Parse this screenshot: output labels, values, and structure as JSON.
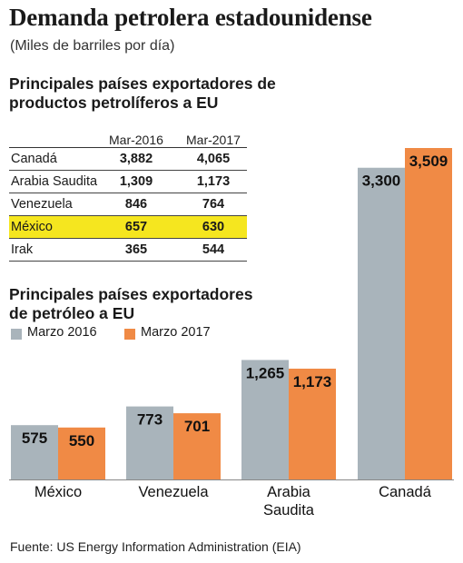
{
  "title": "Demanda petrolera estadounidense",
  "subtitle": "(Miles de barriles por día)",
  "table": {
    "title_line1": "Principales países exportadores de",
    "title_line2": "productos petrolíferos a EU",
    "headers": [
      "Mar-2016",
      "Mar-2017"
    ],
    "rows": [
      {
        "country": "Canadá",
        "v2016": "3,882",
        "v2017": "4,065",
        "highlight": false
      },
      {
        "country": "Arabia Saudita",
        "v2016": "1,309",
        "v2017": "1,173",
        "highlight": false
      },
      {
        "country": "Venezuela",
        "v2016": "846",
        "v2017": "764",
        "highlight": false
      },
      {
        "country": "México",
        "v2016": "657",
        "v2017": "630",
        "highlight": true
      },
      {
        "country": "Irak",
        "v2016": "365",
        "v2017": "544",
        "highlight": false
      }
    ],
    "highlight_color": "#f5e61f"
  },
  "chart": {
    "title_line1": "Principales países exportadores",
    "title_line2": "de petróleo a EU",
    "legend": [
      "Marzo 2016",
      "Marzo 2017"
    ]
  },
  "chart_data": {
    "type": "bar",
    "categories": [
      "México",
      "Venezuela",
      "Arabia Saudita",
      "Canadá"
    ],
    "category_lines": [
      [
        "México"
      ],
      [
        "Venezuela"
      ],
      [
        "Arabia",
        "Saudita"
      ],
      [
        "Canadá"
      ]
    ],
    "series": [
      {
        "name": "Marzo 2016",
        "color": "#a9b4bb",
        "values": [
          575,
          773,
          1265,
          3300
        ],
        "labels": [
          "575",
          "773",
          "1,265",
          "3,300"
        ]
      },
      {
        "name": "Marzo 2017",
        "color": "#f08a45",
        "values": [
          550,
          701,
          1173,
          3509
        ],
        "labels": [
          "550",
          "701",
          "1,173",
          "3,509"
        ]
      }
    ],
    "title": "Principales países exportadores de petróleo a EU",
    "xlabel": "",
    "ylabel": "",
    "grid": false,
    "legend_position": "top-left"
  },
  "source": "Fuente: US Energy Information Administration (EIA)"
}
